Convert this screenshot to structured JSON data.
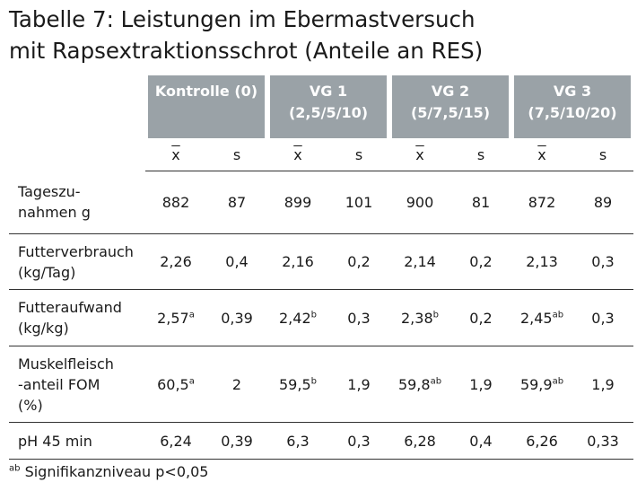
{
  "title": {
    "line1": "Tabelle 7: Leistungen im Ebermastversuch",
    "line2": "mit Rapsextraktionsschrot (Anteile an RES)"
  },
  "groups": [
    {
      "line1": "Kontrolle (0)",
      "line2": ""
    },
    {
      "line1": "VG 1",
      "line2": "(2,5/5/10)"
    },
    {
      "line1": "VG 2",
      "line2": "(5/7,5/15)"
    },
    {
      "line1": "VG 3",
      "line2": "(7,5/10/20)"
    }
  ],
  "subheaders": {
    "mean": "x",
    "sd": "s"
  },
  "rows": [
    {
      "label": [
        "Tageszu-",
        "nahmen g"
      ],
      "cells": [
        {
          "v": "882",
          "sup": ""
        },
        {
          "v": "87",
          "sup": ""
        },
        {
          "v": "899",
          "sup": ""
        },
        {
          "v": "101",
          "sup": ""
        },
        {
          "v": "900",
          "sup": ""
        },
        {
          "v": "81",
          "sup": ""
        },
        {
          "v": "872",
          "sup": ""
        },
        {
          "v": "89",
          "sup": ""
        }
      ]
    },
    {
      "label": [
        "Futterverbrauch",
        "(kg/Tag)"
      ],
      "cells": [
        {
          "v": "2,26",
          "sup": ""
        },
        {
          "v": "0,4",
          "sup": ""
        },
        {
          "v": "2,16",
          "sup": ""
        },
        {
          "v": "0,2",
          "sup": ""
        },
        {
          "v": "2,14",
          "sup": ""
        },
        {
          "v": "0,2",
          "sup": ""
        },
        {
          "v": "2,13",
          "sup": ""
        },
        {
          "v": "0,3",
          "sup": ""
        }
      ]
    },
    {
      "label": [
        "Futteraufwand",
        "(kg/kg)"
      ],
      "cells": [
        {
          "v": "2,57",
          "sup": "a"
        },
        {
          "v": "0,39",
          "sup": ""
        },
        {
          "v": "2,42",
          "sup": "b"
        },
        {
          "v": "0,3",
          "sup": ""
        },
        {
          "v": "2,38",
          "sup": "b"
        },
        {
          "v": "0,2",
          "sup": ""
        },
        {
          "v": "2,45",
          "sup": "ab"
        },
        {
          "v": "0,3",
          "sup": ""
        }
      ]
    },
    {
      "label": [
        "Muskelfleisch",
        "-anteil FOM",
        "(%)"
      ],
      "cells": [
        {
          "v": "60,5",
          "sup": "a"
        },
        {
          "v": "2",
          "sup": ""
        },
        {
          "v": "59,5",
          "sup": "b"
        },
        {
          "v": "1,9",
          "sup": ""
        },
        {
          "v": "59,8",
          "sup": "ab"
        },
        {
          "v": "1,9",
          "sup": ""
        },
        {
          "v": "59,9",
          "sup": "ab"
        },
        {
          "v": "1,9",
          "sup": ""
        }
      ]
    },
    {
      "label": [
        "pH 45 min"
      ],
      "cells": [
        {
          "v": "6,24",
          "sup": ""
        },
        {
          "v": "0,39",
          "sup": ""
        },
        {
          "v": "6,3",
          "sup": ""
        },
        {
          "v": "0,3",
          "sup": ""
        },
        {
          "v": "6,28",
          "sup": ""
        },
        {
          "v": "0,4",
          "sup": ""
        },
        {
          "v": "6,26",
          "sup": ""
        },
        {
          "v": "0,33",
          "sup": ""
        }
      ]
    }
  ],
  "footnote": {
    "sup": "ab",
    "text": "Signifikanzniveau p<0,05"
  },
  "colors": {
    "header_bg": "#9aa2a7",
    "header_text": "#ffffff"
  }
}
